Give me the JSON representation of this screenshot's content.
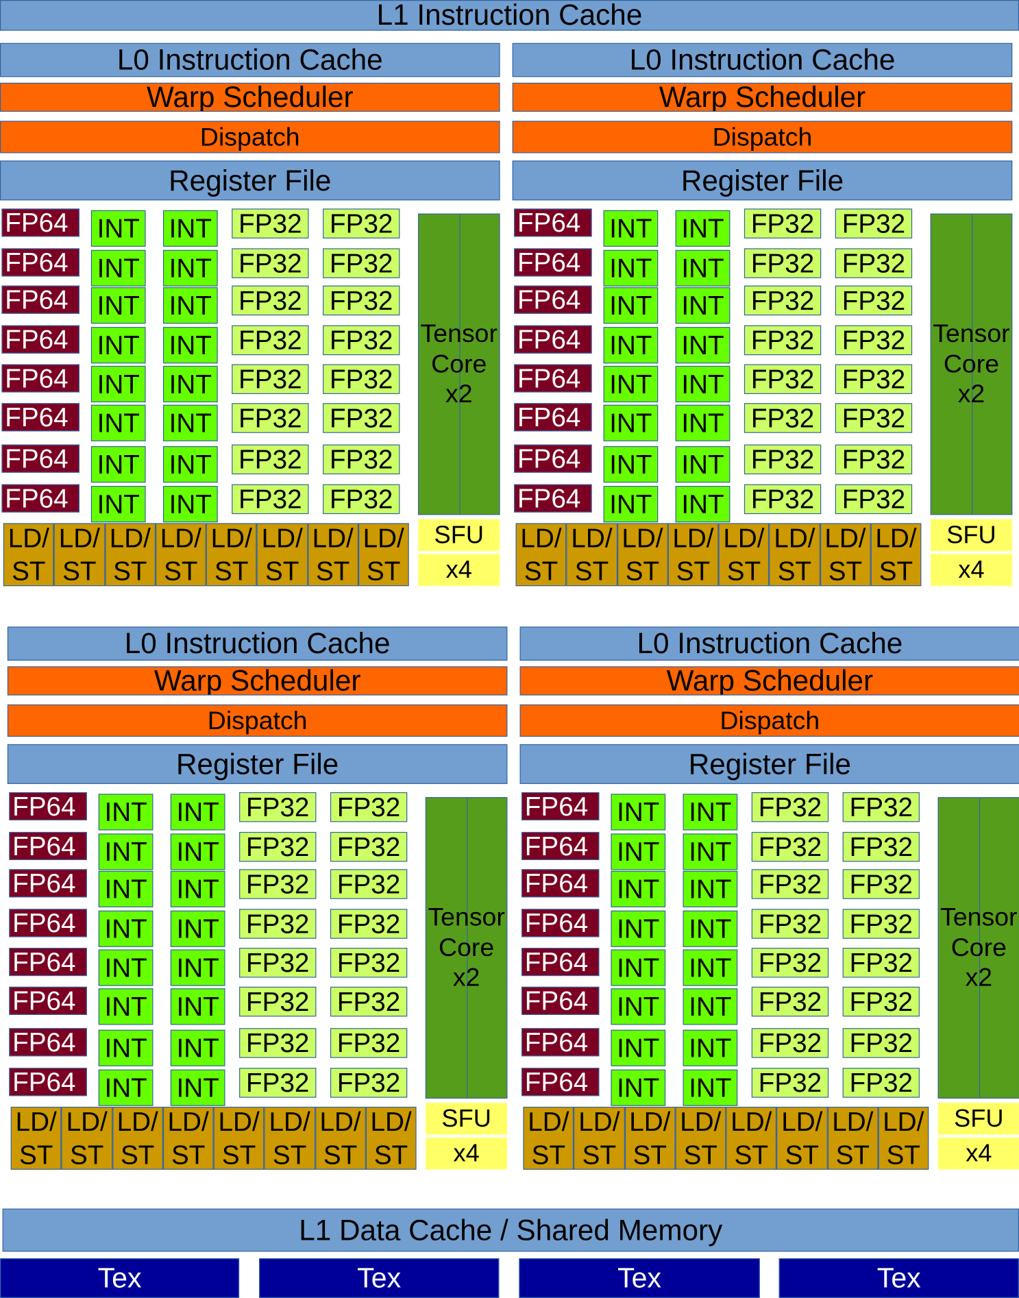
{
  "l1_instruction_cache": "L1 Instruction Cache",
  "sub_cores": [
    {
      "l0_cache": "L0 Instruction Cache",
      "warp_scheduler": "Warp Scheduler",
      "dispatch": "Dispatch",
      "register_file": "Register File"
    },
    {
      "l0_cache": "L0 Instruction Cache",
      "warp_scheduler": "Warp Scheduler",
      "dispatch": "Dispatch",
      "register_file": "Register File"
    },
    {
      "l0_cache": "L0 Instruction Cache",
      "warp_scheduler": "Warp Scheduler",
      "dispatch": "Dispatch",
      "register_file": "Register File"
    },
    {
      "l0_cache": "L0 Instruction Cache",
      "warp_scheduler": "Warp Scheduler",
      "dispatch": "Dispatch",
      "register_file": "Register File"
    }
  ],
  "unit_labels": {
    "fp64": "FP64",
    "int": "INT",
    "fp32": "FP32",
    "tensor_core": [
      "Tensor",
      "Core",
      "x2"
    ],
    "ldst": [
      "LD/",
      "ST"
    ],
    "sfu": "SFU",
    "sfu_count": "x4"
  },
  "rows_per_sub_core": 8,
  "ldst_per_sub_core": 8,
  "l1_data_cache": "L1 Data Cache / Shared Memory",
  "tex_units": [
    "Tex",
    "Tex",
    "Tex",
    "Tex"
  ],
  "colors": {
    "cache": "#729fcf",
    "scheduler": "#ff6600",
    "fp64": "#7b0022",
    "int": "#66ff00",
    "fp32": "#ccff66",
    "tensor": "#579d1c",
    "ldst": "#cc9900",
    "sfu": "#ffff66",
    "tex": "#000099"
  }
}
